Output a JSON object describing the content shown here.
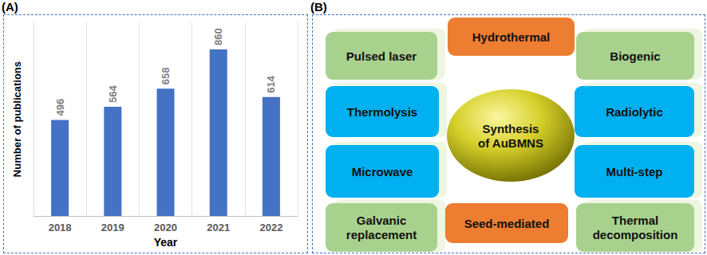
{
  "panel_labels": [
    "(A)",
    "(B)"
  ],
  "chart_data": {
    "type": "bar",
    "categories": [
      "2018",
      "2019",
      "2020",
      "2021",
      "2022"
    ],
    "values": [
      496,
      564,
      658,
      860,
      614
    ],
    "color": "#4472c4",
    "x_label": "Year",
    "y_label": "Number of publications",
    "ylim": [
      0,
      1000
    ],
    "grid": true,
    "data_labels": true,
    "tick_labels": "x"
  },
  "diagram": {
    "center": [
      "Synthesis",
      "of AuBMNS"
    ],
    "nodes": [
      {
        "lines": [
          "Pulsed laser"
        ],
        "color": "#a9d18e"
      },
      {
        "lines": [
          "Hydrothermal"
        ],
        "color": "#ed7d31"
      },
      {
        "lines": [
          "Biogenic"
        ],
        "color": "#a9d18e"
      },
      {
        "lines": [
          "Thermolysis"
        ],
        "color": "#00b0f0"
      },
      {
        "lines": [
          "Radiolytic"
        ],
        "color": "#00b0f0"
      },
      {
        "lines": [
          "Microwave"
        ],
        "color": "#00b0f0"
      },
      {
        "lines": [
          "Multi-step"
        ],
        "color": "#00b0f0"
      },
      {
        "lines": [
          "Galvanic",
          "replacement"
        ],
        "color": "#a9d18e"
      },
      {
        "lines": [
          "Seed-mediated"
        ],
        "color": "#ed7d31"
      },
      {
        "lines": [
          "Thermal",
          "decomposition"
        ],
        "color": "#a9d18e"
      }
    ]
  }
}
